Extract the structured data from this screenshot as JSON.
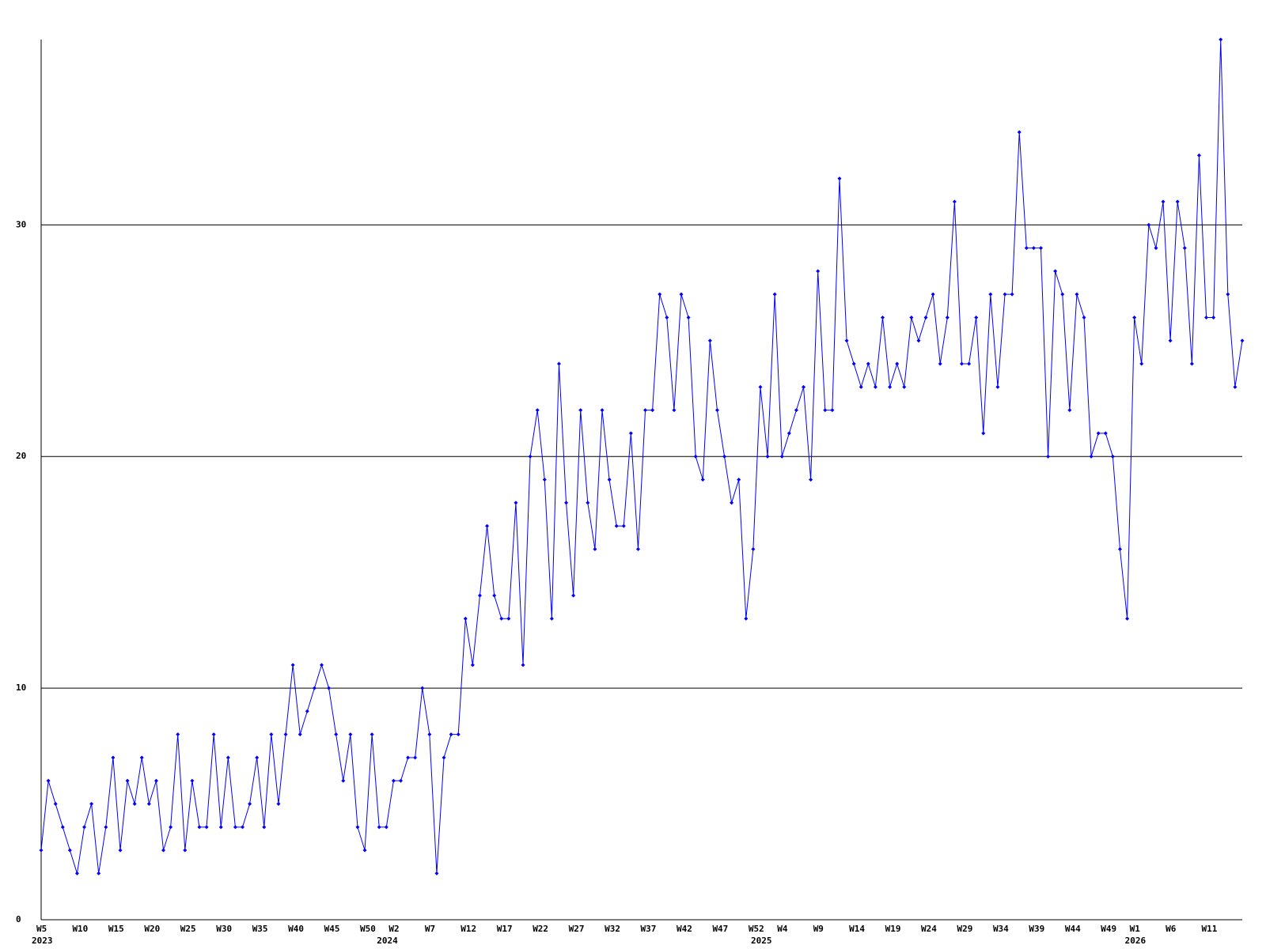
{
  "chart_data": {
    "type": "line",
    "categories": [
      "W5",
      null,
      null,
      null,
      null,
      "W10",
      null,
      null,
      null,
      null,
      "W15",
      null,
      null,
      null,
      null,
      "W20",
      null,
      null,
      null,
      null,
      "W25",
      null,
      null,
      null,
      null,
      "W30",
      null,
      null,
      null,
      null,
      "W35",
      null,
      null,
      null,
      null,
      "W40",
      null,
      null,
      null,
      null,
      "W45",
      null,
      null,
      null,
      null,
      "W50",
      null,
      null,
      null,
      "W2",
      null,
      null,
      null,
      null,
      "W7",
      null,
      null,
      null,
      null,
      "W12",
      null,
      null,
      null,
      null,
      "W17",
      null,
      null,
      null,
      null,
      "W22",
      null,
      null,
      null,
      null,
      "W27",
      null,
      null,
      null,
      null,
      "W32",
      null,
      null,
      null,
      null,
      "W37",
      null,
      null,
      null,
      null,
      "W42",
      null,
      null,
      null,
      null,
      "W47",
      null,
      null,
      null,
      null,
      "W52",
      null,
      null,
      null,
      "W4",
      null,
      null,
      null,
      null,
      "W9",
      null,
      null,
      null,
      null,
      "W14",
      null,
      null,
      null,
      null,
      "W19",
      null,
      null,
      null,
      null,
      "W24",
      null,
      null,
      null,
      null,
      "W29",
      null,
      null,
      null,
      null,
      "W34",
      null,
      null,
      null,
      null,
      "W39",
      null,
      null,
      null,
      null,
      "W44",
      null,
      null,
      null,
      null,
      "W49",
      null,
      null,
      null,
      "W1",
      null,
      null,
      null,
      null,
      "W6",
      null,
      null,
      null,
      null,
      "W11",
      null,
      null,
      null,
      null,
      null
    ],
    "category_years": [
      "2023",
      null,
      null,
      null,
      null,
      null,
      null,
      null,
      null,
      null,
      null,
      null,
      null,
      null,
      null,
      null,
      null,
      null,
      null,
      null,
      null,
      null,
      null,
      null,
      null,
      null,
      null,
      null,
      null,
      null,
      null,
      null,
      null,
      null,
      null,
      null,
      null,
      null,
      null,
      null,
      null,
      null,
      null,
      null,
      null,
      null,
      null,
      null,
      "2024",
      null,
      null,
      null,
      null,
      null,
      null,
      null,
      null,
      null,
      null,
      null,
      null,
      null,
      null,
      null,
      null,
      null,
      null,
      null,
      null,
      null,
      null,
      null,
      null,
      null,
      null,
      null,
      null,
      null,
      null,
      null,
      null,
      null,
      null,
      null,
      null,
      null,
      null,
      null,
      null,
      null,
      null,
      null,
      null,
      null,
      null,
      null,
      null,
      null,
      null,
      null,
      "2025",
      null,
      null,
      null,
      null,
      null,
      null,
      null,
      null,
      null,
      null,
      null,
      null,
      null,
      null,
      null,
      null,
      null,
      null,
      null,
      null,
      null,
      null,
      null,
      null,
      null,
      null,
      null,
      null,
      null,
      null,
      null,
      null,
      null,
      null,
      null,
      null,
      null,
      null,
      null,
      null,
      null,
      null,
      null,
      null,
      null,
      null,
      null,
      null,
      null,
      null,
      null,
      "2026",
      null,
      null,
      null,
      null,
      null,
      null,
      null,
      null,
      null,
      null,
      null,
      null,
      null,
      null,
      null
    ],
    "series": [
      {
        "color": "#0000ff",
        "values": [
          3,
          6,
          5,
          4,
          3,
          2,
          4,
          5,
          2,
          4,
          7,
          3,
          6,
          5,
          7,
          5,
          6,
          3,
          4,
          8,
          3,
          6,
          4,
          4,
          8,
          4,
          7,
          4,
          4,
          5,
          7,
          4,
          8,
          5,
          8,
          11,
          8,
          9,
          10,
          11,
          10,
          8,
          6,
          8,
          4,
          3,
          8,
          4,
          4,
          6,
          6,
          7,
          7,
          10,
          8,
          2,
          7,
          8,
          8,
          13,
          11,
          14,
          17,
          14,
          13,
          13,
          18,
          11,
          20,
          22,
          19,
          13,
          24,
          18,
          14,
          22,
          18,
          16,
          22,
          19,
          17,
          17,
          21,
          16,
          22,
          22,
          27,
          26,
          22,
          27,
          26,
          20,
          19,
          25,
          22,
          20,
          18,
          19,
          13,
          16,
          23,
          20,
          27,
          20,
          21,
          22,
          23,
          19,
          28,
          22,
          22,
          32,
          25,
          24,
          23,
          24,
          23,
          26,
          23,
          24,
          23,
          26,
          25,
          26,
          27,
          24,
          26,
          31,
          24,
          24,
          26,
          21,
          27,
          23,
          27,
          27,
          34,
          29,
          29,
          29,
          20,
          28,
          27,
          22,
          27,
          26,
          20,
          21,
          21,
          20,
          16,
          13,
          26,
          24,
          30,
          29,
          31,
          25,
          31,
          29,
          24,
          33,
          26,
          26,
          38,
          27,
          23,
          25
        ]
      }
    ],
    "ylim": [
      0,
      38
    ],
    "yticks": [
      0,
      10,
      20,
      30
    ],
    "grid": true
  }
}
